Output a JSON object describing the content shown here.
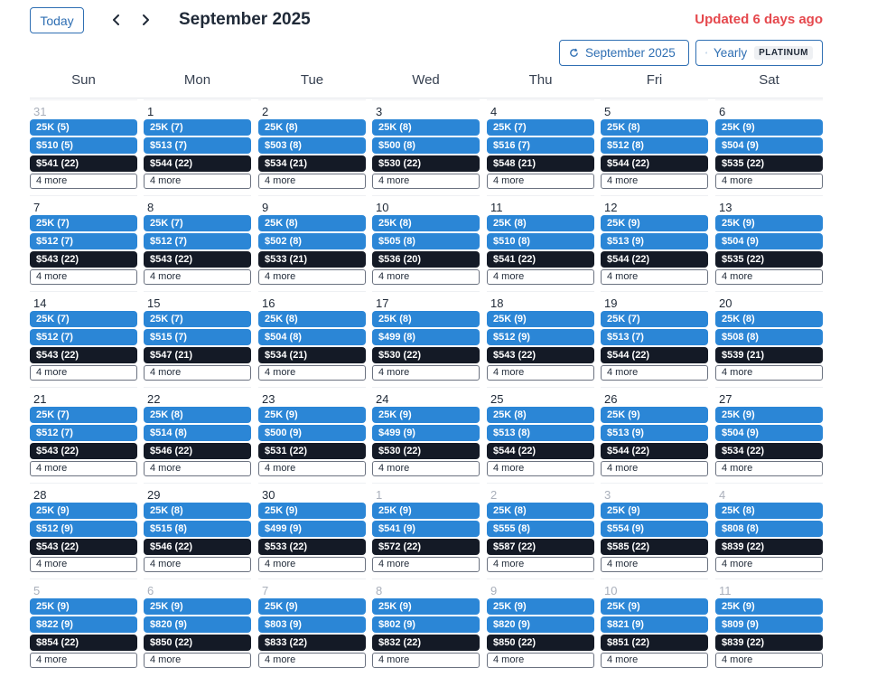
{
  "header": {
    "today_label": "Today",
    "prev_icon": "chevron-left-icon",
    "next_icon": "chevron-right-icon",
    "title": "September 2025",
    "updated": "Updated 6 days ago",
    "month_filter_label": "September 2025",
    "yearly_label": "Yearly",
    "yearly_badge": "PLATINUM",
    "refresh_icon": "refresh-icon",
    "accent_color": "#2f6fb3",
    "updated_color": "#e5484d"
  },
  "weekdays": [
    "Sun",
    "Mon",
    "Tue",
    "Wed",
    "Thu",
    "Fri",
    "Sat"
  ],
  "more_label": "4 more",
  "weeks": [
    [
      {
        "day": "31",
        "muted": true,
        "events": [
          "25K (5)",
          "$510 (5)",
          "$541 (22)"
        ]
      },
      {
        "day": "1",
        "muted": false,
        "events": [
          "25K (7)",
          "$513 (7)",
          "$544 (22)"
        ]
      },
      {
        "day": "2",
        "muted": false,
        "events": [
          "25K (8)",
          "$503 (8)",
          "$534 (21)"
        ]
      },
      {
        "day": "3",
        "muted": false,
        "events": [
          "25K (8)",
          "$500 (8)",
          "$530 (22)"
        ]
      },
      {
        "day": "4",
        "muted": false,
        "events": [
          "25K (7)",
          "$516 (7)",
          "$548 (21)"
        ]
      },
      {
        "day": "5",
        "muted": false,
        "events": [
          "25K (8)",
          "$512 (8)",
          "$544 (22)"
        ]
      },
      {
        "day": "6",
        "muted": false,
        "events": [
          "25K (9)",
          "$504 (9)",
          "$535 (22)"
        ]
      }
    ],
    [
      {
        "day": "7",
        "muted": false,
        "events": [
          "25K (7)",
          "$512 (7)",
          "$543 (22)"
        ]
      },
      {
        "day": "8",
        "muted": false,
        "events": [
          "25K (7)",
          "$512 (7)",
          "$543 (22)"
        ]
      },
      {
        "day": "9",
        "muted": false,
        "events": [
          "25K (8)",
          "$502 (8)",
          "$533 (21)"
        ]
      },
      {
        "day": "10",
        "muted": false,
        "events": [
          "25K (8)",
          "$505 (8)",
          "$536 (20)"
        ]
      },
      {
        "day": "11",
        "muted": false,
        "events": [
          "25K (8)",
          "$510 (8)",
          "$541 (22)"
        ]
      },
      {
        "day": "12",
        "muted": false,
        "events": [
          "25K (9)",
          "$513 (9)",
          "$544 (22)"
        ]
      },
      {
        "day": "13",
        "muted": false,
        "events": [
          "25K (9)",
          "$504 (9)",
          "$535 (22)"
        ]
      }
    ],
    [
      {
        "day": "14",
        "muted": false,
        "events": [
          "25K (7)",
          "$512 (7)",
          "$543 (22)"
        ]
      },
      {
        "day": "15",
        "muted": false,
        "events": [
          "25K (7)",
          "$515 (7)",
          "$547 (21)"
        ]
      },
      {
        "day": "16",
        "muted": false,
        "events": [
          "25K (8)",
          "$504 (8)",
          "$534 (21)"
        ]
      },
      {
        "day": "17",
        "muted": false,
        "events": [
          "25K (8)",
          "$499 (8)",
          "$530 (22)"
        ]
      },
      {
        "day": "18",
        "muted": false,
        "events": [
          "25K (9)",
          "$512 (9)",
          "$543 (22)"
        ]
      },
      {
        "day": "19",
        "muted": false,
        "events": [
          "25K (7)",
          "$513 (7)",
          "$544 (22)"
        ]
      },
      {
        "day": "20",
        "muted": false,
        "events": [
          "25K (8)",
          "$508 (8)",
          "$539 (21)"
        ]
      }
    ],
    [
      {
        "day": "21",
        "muted": false,
        "events": [
          "25K (7)",
          "$512 (7)",
          "$543 (22)"
        ]
      },
      {
        "day": "22",
        "muted": false,
        "events": [
          "25K (8)",
          "$514 (8)",
          "$546 (22)"
        ]
      },
      {
        "day": "23",
        "muted": false,
        "events": [
          "25K (9)",
          "$500 (9)",
          "$531 (22)"
        ]
      },
      {
        "day": "24",
        "muted": false,
        "events": [
          "25K (9)",
          "$499 (9)",
          "$530 (22)"
        ]
      },
      {
        "day": "25",
        "muted": false,
        "events": [
          "25K (8)",
          "$513 (8)",
          "$544 (22)"
        ]
      },
      {
        "day": "26",
        "muted": false,
        "events": [
          "25K (9)",
          "$513 (9)",
          "$544 (22)"
        ]
      },
      {
        "day": "27",
        "muted": false,
        "events": [
          "25K (9)",
          "$504 (9)",
          "$534 (22)"
        ]
      }
    ],
    [
      {
        "day": "28",
        "muted": false,
        "events": [
          "25K (9)",
          "$512 (9)",
          "$543 (22)"
        ]
      },
      {
        "day": "29",
        "muted": false,
        "events": [
          "25K (8)",
          "$515 (8)",
          "$546 (22)"
        ]
      },
      {
        "day": "30",
        "muted": false,
        "events": [
          "25K (9)",
          "$499 (9)",
          "$533 (22)"
        ]
      },
      {
        "day": "1",
        "muted": true,
        "events": [
          "25K (9)",
          "$541 (9)",
          "$572 (22)"
        ]
      },
      {
        "day": "2",
        "muted": true,
        "events": [
          "25K (8)",
          "$555 (8)",
          "$587 (22)"
        ]
      },
      {
        "day": "3",
        "muted": true,
        "events": [
          "25K (9)",
          "$554 (9)",
          "$585 (22)"
        ]
      },
      {
        "day": "4",
        "muted": true,
        "events": [
          "25K (8)",
          "$808 (8)",
          "$839 (22)"
        ]
      }
    ],
    [
      {
        "day": "5",
        "muted": true,
        "events": [
          "25K (9)",
          "$822 (9)",
          "$854 (22)"
        ]
      },
      {
        "day": "6",
        "muted": true,
        "events": [
          "25K (9)",
          "$820 (9)",
          "$850 (22)"
        ]
      },
      {
        "day": "7",
        "muted": true,
        "events": [
          "25K (9)",
          "$803 (9)",
          "$833 (22)"
        ]
      },
      {
        "day": "8",
        "muted": true,
        "events": [
          "25K (9)",
          "$802 (9)",
          "$832 (22)"
        ]
      },
      {
        "day": "9",
        "muted": true,
        "events": [
          "25K (9)",
          "$820 (9)",
          "$850 (22)"
        ]
      },
      {
        "day": "10",
        "muted": true,
        "events": [
          "25K (9)",
          "$821 (9)",
          "$851 (22)"
        ]
      },
      {
        "day": "11",
        "muted": true,
        "events": [
          "25K (9)",
          "$809 (9)",
          "$839 (22)"
        ]
      }
    ]
  ],
  "colors": {
    "event_blue": "#2b86d6",
    "event_dark": "#141a26"
  }
}
